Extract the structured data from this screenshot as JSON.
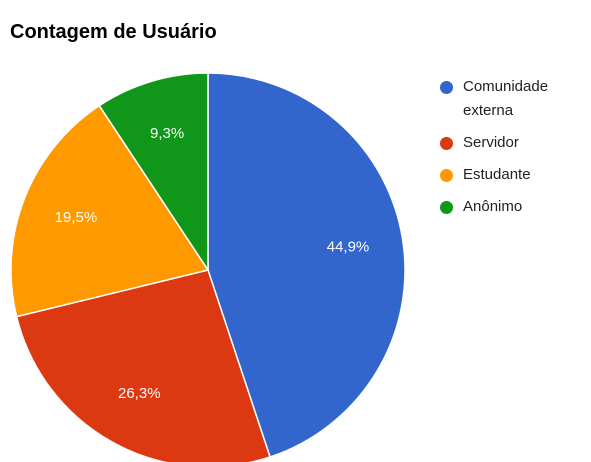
{
  "chart_data": {
    "type": "pie",
    "title": "Contagem de Usuário",
    "categories": [
      "Comunidade externa",
      "Servidor",
      "Estudante",
      "Anônimo"
    ],
    "values": [
      44.9,
      26.3,
      19.5,
      9.3
    ],
    "value_labels": [
      "44,9%",
      "26,3%",
      "19,5%",
      "9,3%"
    ],
    "colors": [
      "#3366cc",
      "#dc3912",
      "#ff9900",
      "#109618"
    ],
    "legend": "right"
  }
}
